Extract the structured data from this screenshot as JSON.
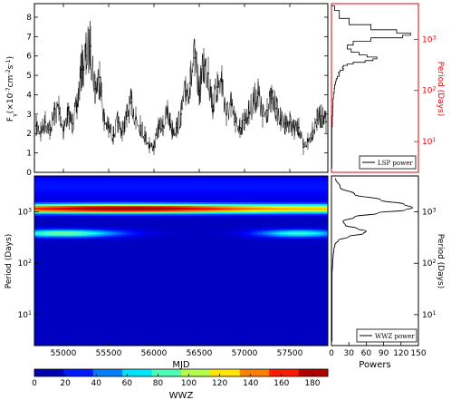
{
  "chart_data": [
    {
      "type": "line",
      "panel": "light-curve",
      "ylabel": "F$_\\gamma$($\\times10^{-7}$cm$^{-2}$s$^{-1}$)",
      "xlim": [
        54680,
        57920
      ],
      "ylim": [
        0,
        8.7
      ],
      "yticks": [
        0,
        1,
        2,
        3,
        4,
        5,
        6,
        7,
        8
      ],
      "error_bars": true,
      "series": [
        {
          "x": [
            54700,
            54750,
            54800,
            54850,
            54900,
            54950,
            55000,
            55050,
            55100,
            55150,
            55200,
            55250,
            55300,
            55350,
            55400,
            55450,
            55500,
            55550,
            55600,
            55650,
            55700,
            55750,
            55800,
            55850,
            55900,
            55950,
            56000,
            56050,
            56100,
            56150,
            56200,
            56250,
            56300,
            56350,
            56400,
            56450,
            56500,
            56550,
            56600,
            56650,
            56700,
            56750,
            56800,
            56850,
            56900,
            56950,
            57000,
            57050,
            57100,
            57150,
            57200,
            57250,
            57300,
            57350,
            57400,
            57450,
            57500,
            57550,
            57600,
            57650,
            57700,
            57750,
            57800,
            57850,
            57900
          ],
          "y": [
            2.4,
            2.1,
            2.6,
            2.2,
            3.0,
            3.3,
            2.2,
            3.0,
            2.5,
            3.4,
            5.3,
            6.0,
            6.5,
            4.3,
            4.9,
            2.7,
            2.3,
            1.9,
            2.6,
            2.1,
            2.9,
            3.6,
            2.8,
            2.4,
            1.9,
            1.4,
            1.3,
            2.3,
            2.4,
            3.1,
            2.2,
            2.3,
            3.0,
            4.2,
            4.6,
            5.9,
            4.2,
            5.5,
            5.1,
            3.4,
            4.4,
            4.7,
            3.0,
            3.5,
            2.6,
            2.3,
            2.7,
            3.1,
            3.7,
            4.1,
            2.9,
            3.2,
            3.8,
            3.3,
            2.7,
            2.5,
            2.6,
            2.2,
            2.3,
            1.3,
            1.6,
            2.1,
            2.7,
            2.9,
            2.6
          ]
        }
      ]
    },
    {
      "type": "line",
      "panel": "lsp",
      "legend": "LSP power",
      "ylabel": "Period (Days)",
      "yscale": "log",
      "ylim": [
        2.5,
        5000
      ],
      "yticks": [
        "10$^{1}$",
        "10$^{2}$",
        "10$^{3}$"
      ],
      "colors": {
        "axis": "#e8000b",
        "line": "#000000"
      },
      "series": [
        {
          "period": [
            4500,
            3000,
            2200,
            1700,
            1400,
            1250,
            1150,
            1000,
            850,
            700,
            600,
            520,
            470,
            430,
            400,
            370,
            340,
            320,
            300,
            280,
            260,
            240,
            220,
            200,
            180,
            160,
            140,
            120,
            100,
            80,
            60,
            40,
            25,
            15,
            8,
            5,
            3
          ],
          "power": [
            8,
            20,
            45,
            100,
            165,
            200,
            180,
            100,
            55,
            40,
            50,
            70,
            90,
            115,
            105,
            85,
            55,
            40,
            30,
            28,
            30,
            22,
            18,
            20,
            15,
            12,
            10,
            8,
            7,
            5,
            4,
            3,
            2,
            1,
            1,
            1,
            1
          ]
        }
      ]
    },
    {
      "type": "heatmap",
      "panel": "wwz",
      "xlabel": "MJD",
      "ylabel": "Period (Days)",
      "xlim": [
        54680,
        57920
      ],
      "xticks": [
        55000,
        55500,
        56000,
        56500,
        57000,
        57500
      ],
      "yscale": "log",
      "ylim": [
        2.5,
        5000
      ],
      "yticks": [
        "10$^{1}$",
        "10$^{2}$",
        "10$^{3}$"
      ],
      "colorbar": {
        "label": "WWZ",
        "range": [
          0,
          190
        ],
        "ticks": [
          0,
          20,
          40,
          60,
          80,
          100,
          120,
          140,
          160,
          180
        ]
      },
      "features": [
        {
          "period": 1150,
          "mjd_range": [
            54700,
            57900
          ],
          "peak_mjd": 55700,
          "peak_wwz": 185
        },
        {
          "period": 380,
          "mjd_range": [
            54700,
            55900
          ],
          "peak_mjd": 55000,
          "peak_wwz": 85
        },
        {
          "period": 380,
          "mjd_range": [
            57000,
            57900
          ],
          "peak_mjd": 57600,
          "peak_wwz": 70
        }
      ]
    },
    {
      "type": "line",
      "panel": "wwz-power",
      "legend": "WWZ power",
      "xlabel": "Powers",
      "xlim": [
        0,
        150
      ],
      "xticks": [
        0,
        30,
        60,
        90,
        120,
        150
      ],
      "ylabel": "Period (Days)",
      "yscale": "log",
      "ylim": [
        2.5,
        5000
      ],
      "yticks": [
        "10$^{1}$",
        "10$^{2}$",
        "10$^{3}$"
      ],
      "series": [
        {
          "period": [
            4500,
            3000,
            2200,
            1700,
            1400,
            1200,
            1100,
            950,
            800,
            650,
            550,
            470,
            420,
            380,
            330,
            280,
            230,
            180,
            140,
            100,
            60,
            30,
            10,
            3
          ],
          "power": [
            7,
            15,
            40,
            85,
            125,
            140,
            128,
            80,
            40,
            20,
            24,
            45,
            60,
            55,
            30,
            12,
            6,
            4,
            3,
            2,
            1,
            1,
            1,
            1
          ]
        }
      ]
    }
  ]
}
